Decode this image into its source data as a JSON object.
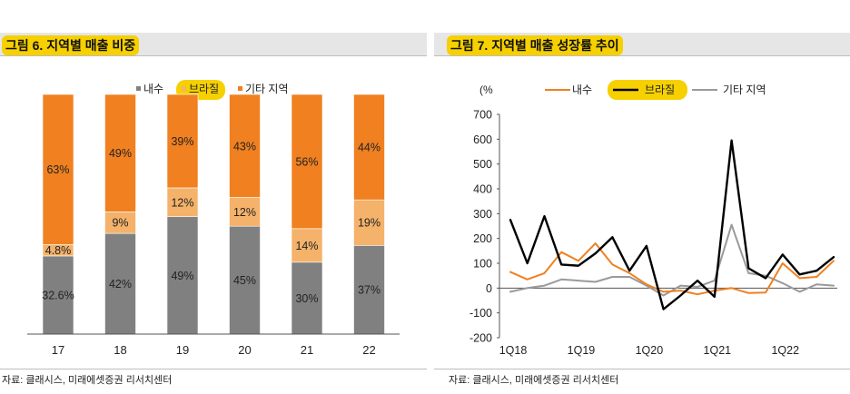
{
  "left": {
    "title": "그림 6. 지역별 매출 비중",
    "source": "자료: 클래시스, 미래에셋증권 리서치센터",
    "chart_data": {
      "type": "bar",
      "stacked": true,
      "categories": [
        "17",
        "18",
        "19",
        "20",
        "21",
        "22"
      ],
      "series": [
        {
          "name": "내수",
          "color": "#808080",
          "values": [
            32.6,
            42,
            49,
            45,
            30,
            37
          ],
          "labels": [
            "32.6%",
            "42%",
            "49%",
            "45%",
            "30%",
            "37%"
          ]
        },
        {
          "name": "브라질",
          "color": "#f4b26a",
          "values": [
            4.8,
            9,
            12,
            12,
            14,
            19
          ],
          "labels": [
            "4.8%",
            "9%",
            "12%",
            "12%",
            "14%",
            "19%"
          ]
        },
        {
          "name": "기타 지역",
          "color": "#f08020",
          "values": [
            62.6,
            49,
            39,
            43,
            56,
            44
          ],
          "labels": [
            "63%",
            "49%",
            "39%",
            "43%",
            "56%",
            "44%"
          ]
        }
      ],
      "ylim": [
        0,
        100
      ],
      "legend_position": "top-right",
      "legend_highlight": "브라질"
    }
  },
  "right": {
    "title": "그림 7. 지역별 매출 성장률 추이",
    "source": "자료: 클래시스, 미래에셋증권 리서치센터",
    "chart_data": {
      "type": "line",
      "ylabel": "(%",
      "ylim": [
        -200,
        700
      ],
      "yticks": [
        -200,
        -100,
        0,
        100,
        200,
        300,
        400,
        500,
        600,
        700
      ],
      "x": [
        "1Q18",
        "2Q18",
        "3Q18",
        "4Q18",
        "1Q19",
        "2Q19",
        "3Q19",
        "4Q19",
        "1Q20",
        "2Q20",
        "3Q20",
        "4Q20",
        "1Q21",
        "2Q21",
        "3Q21",
        "4Q21",
        "1Q22",
        "2Q22",
        "3Q22",
        "4Q22"
      ],
      "xtick_labels": [
        "1Q18",
        "1Q19",
        "1Q20",
        "1Q21",
        "1Q22"
      ],
      "legend_position": "top",
      "legend_highlight": "브라질",
      "series": [
        {
          "name": "내수",
          "color": "#f08020",
          "width": 2,
          "values": [
            65,
            35,
            60,
            145,
            110,
            180,
            95,
            60,
            15,
            -15,
            -10,
            -25,
            -10,
            0,
            -20,
            -18,
            100,
            40,
            45,
            110
          ]
        },
        {
          "name": "브라질",
          "color": "#000000",
          "width": 2.4,
          "values": [
            275,
            100,
            290,
            95,
            90,
            140,
            205,
            70,
            170,
            -85,
            -30,
            30,
            -35,
            595,
            80,
            40,
            135,
            55,
            70,
            125
          ]
        },
        {
          "name": "기타 지역",
          "color": "#9a9a9a",
          "width": 2,
          "values": [
            -15,
            0,
            10,
            35,
            30,
            25,
            45,
            45,
            10,
            -30,
            10,
            5,
            30,
            255,
            60,
            50,
            20,
            -15,
            15,
            10
          ]
        }
      ]
    }
  }
}
